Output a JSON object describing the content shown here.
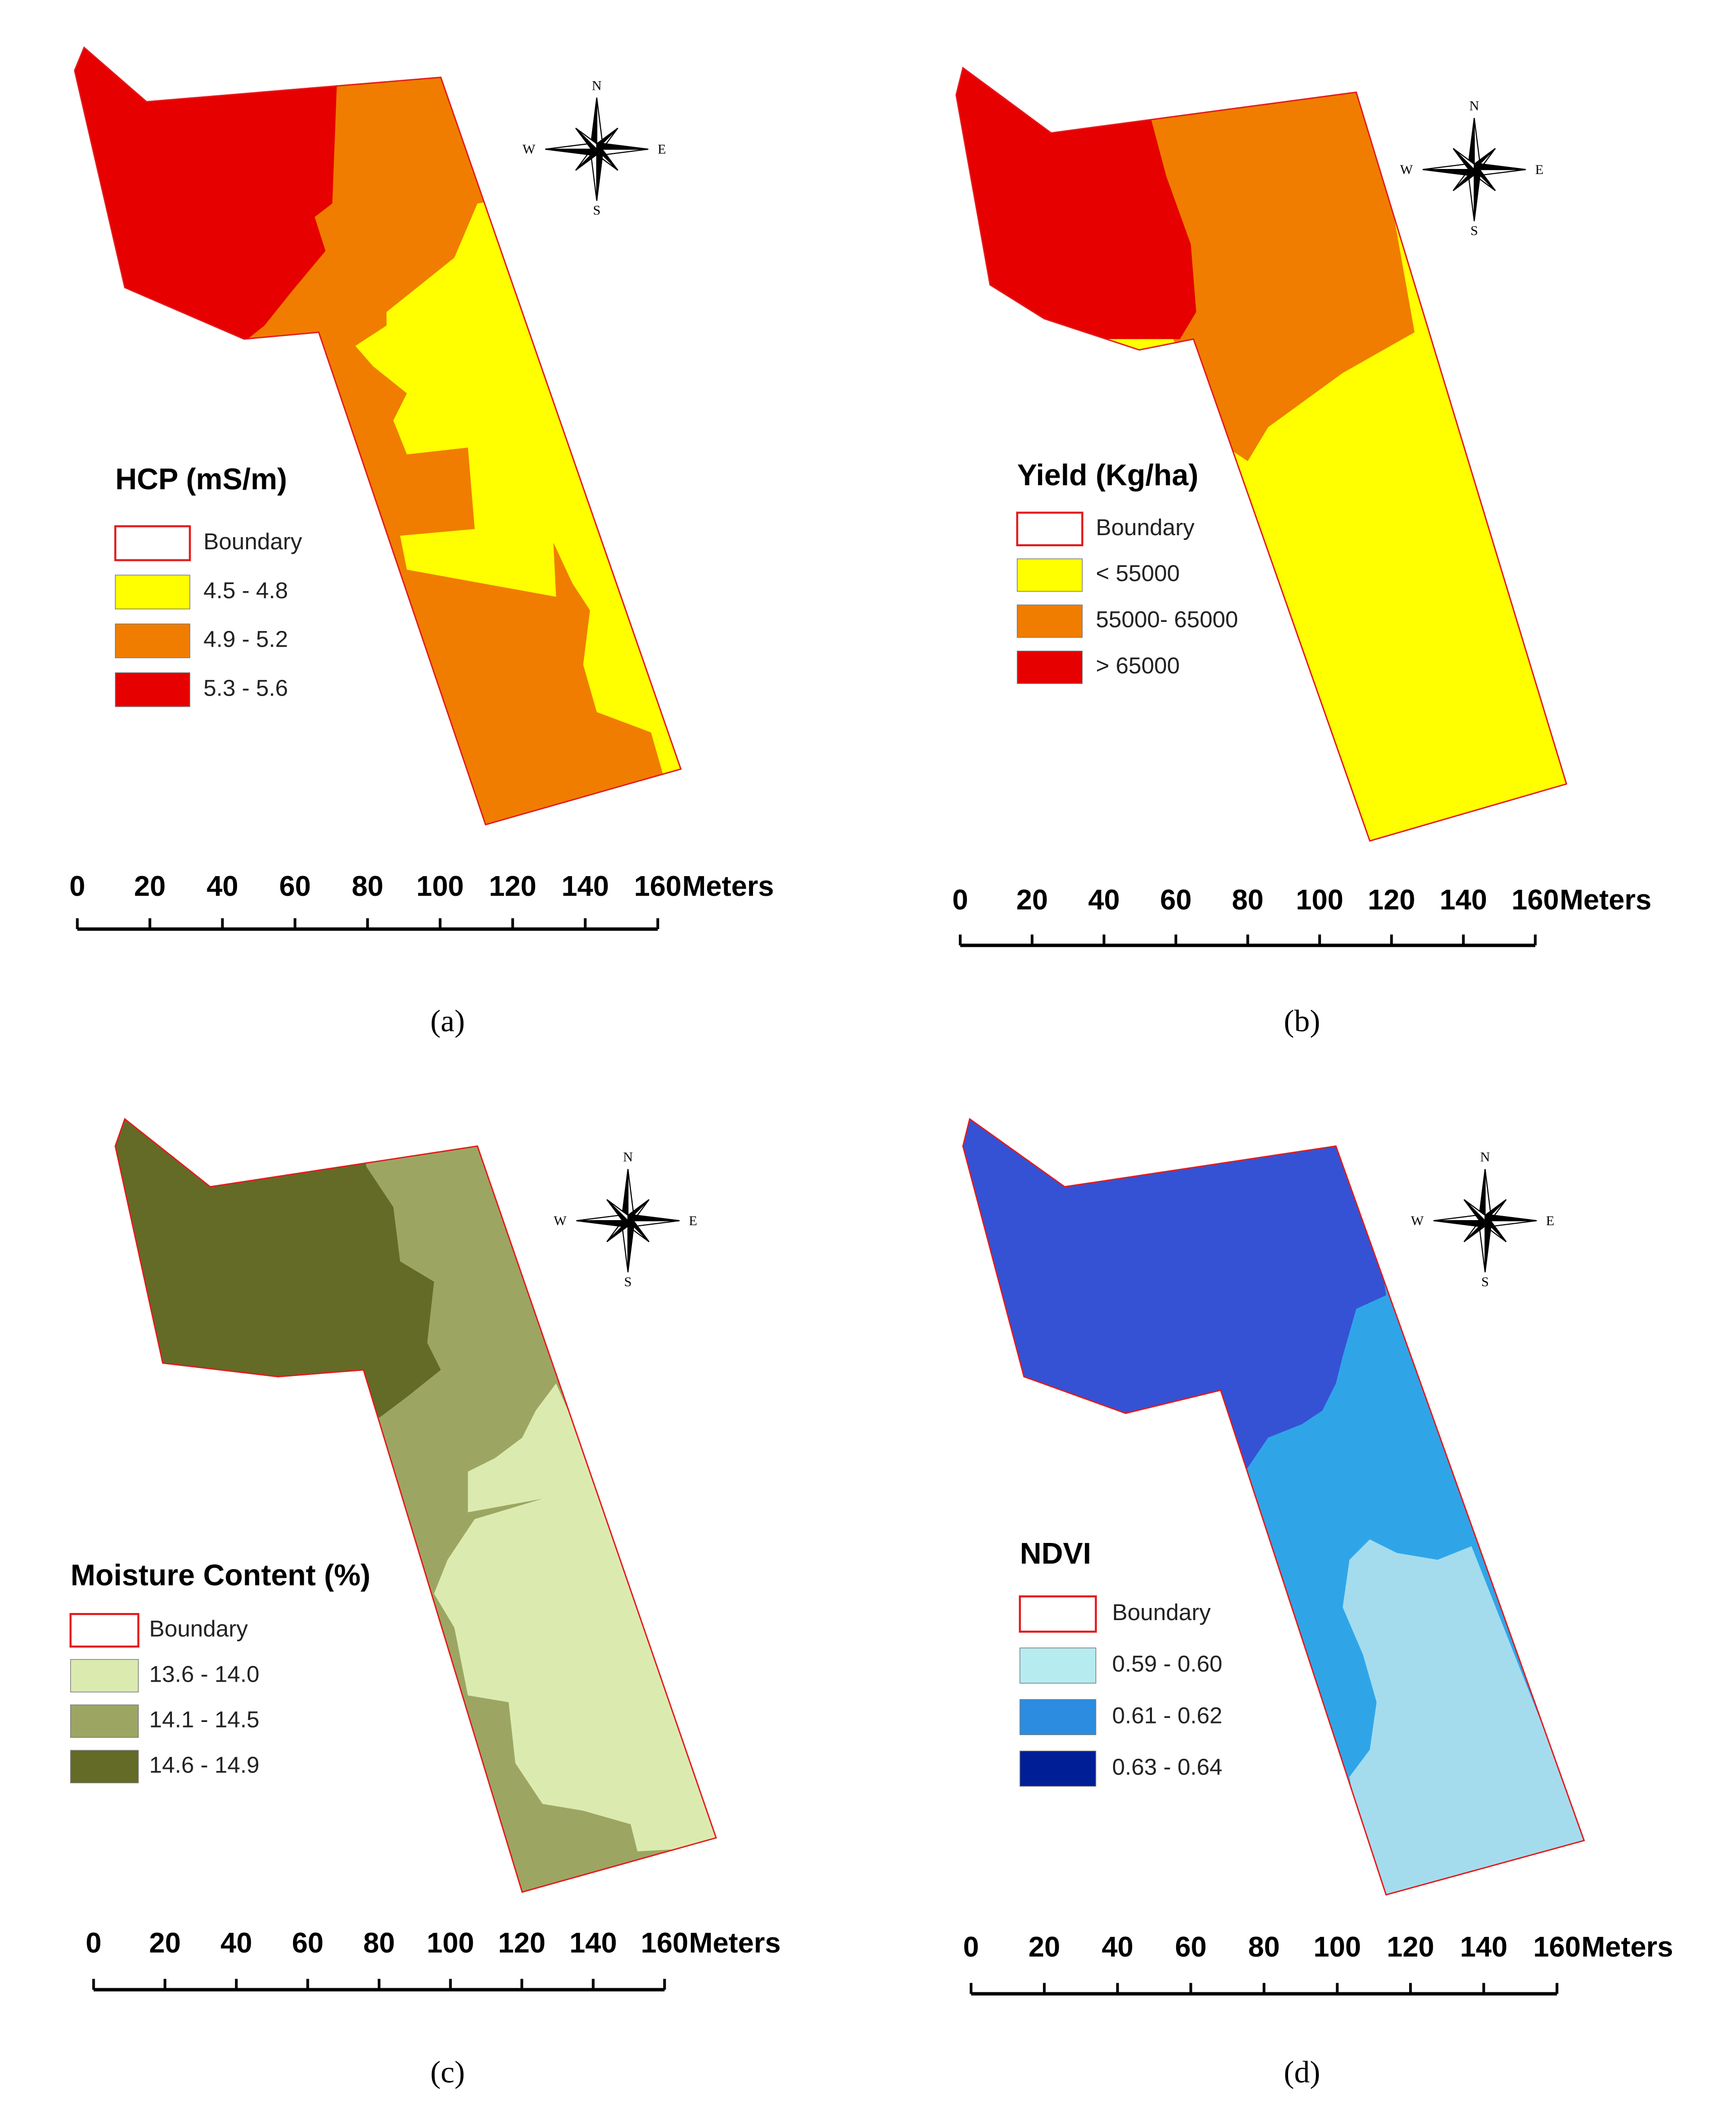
{
  "panels": [
    {
      "legend_title": "HCP (mS/m)",
      "legend": [
        {
          "label": "Boundary",
          "stroke": "#e31a1c"
        },
        {
          "label": "4.5 - 4.8",
          "color": "#ffff00"
        },
        {
          "label": "4.9 - 5.2",
          "color": "#f07d00"
        },
        {
          "label": "5.3 - 5.6",
          "color": "#e60000"
        }
      ],
      "scale_ticks": [
        0,
        20,
        40,
        60,
        80,
        100,
        120,
        140,
        160
      ],
      "scale_unit": "Meters",
      "compass": {
        "N": "N",
        "E": "E",
        "S": "S",
        "W": "W"
      },
      "caption": "(a)"
    },
    {
      "legend_title": "Yield (Kg/ha)",
      "legend": [
        {
          "label": "Boundary",
          "stroke": "#e31a1c"
        },
        {
          "label": "< 55000",
          "color": "#ffff00"
        },
        {
          "label": "55000- 65000",
          "color": "#f07d00"
        },
        {
          "label": "> 65000",
          "color": "#e60000"
        }
      ],
      "scale_ticks": [
        0,
        20,
        40,
        60,
        80,
        100,
        120,
        140,
        160
      ],
      "scale_unit": "Meters",
      "compass": {
        "N": "N",
        "E": "E",
        "S": "S",
        "W": "W"
      },
      "caption": "(b)"
    },
    {
      "legend_title": "Moisture Content (%)",
      "legend": [
        {
          "label": "Boundary",
          "stroke": "#e31a1c"
        },
        {
          "label": "13.6 - 14.0",
          "color": "#dbebb0"
        },
        {
          "label": "14.1 - 14.5",
          "color": "#9ca662"
        },
        {
          "label": "14.6 - 14.9",
          "color": "#636b26"
        }
      ],
      "scale_ticks": [
        0,
        20,
        40,
        60,
        80,
        100,
        120,
        140,
        160
      ],
      "scale_unit": "Meters",
      "compass": {
        "N": "N",
        "E": "E",
        "S": "S",
        "W": "W"
      },
      "caption": "(c)"
    },
    {
      "legend_title": "NDVI",
      "legend": [
        {
          "label": "Boundary",
          "stroke": "#e31a1c"
        },
        {
          "label": "0.59 - 0.60",
          "color": "#b6ebf0"
        },
        {
          "label": "0.61 - 0.62",
          "color": "#2b8ce0"
        },
        {
          "label": "0.63 - 0.64",
          "color": "#001e96"
        }
      ],
      "scale_ticks": [
        0,
        20,
        40,
        60,
        80,
        100,
        120,
        140,
        160
      ],
      "scale_unit": "Meters",
      "compass": {
        "N": "N",
        "E": "E",
        "S": "S",
        "W": "W"
      },
      "caption": "(d)"
    }
  ]
}
